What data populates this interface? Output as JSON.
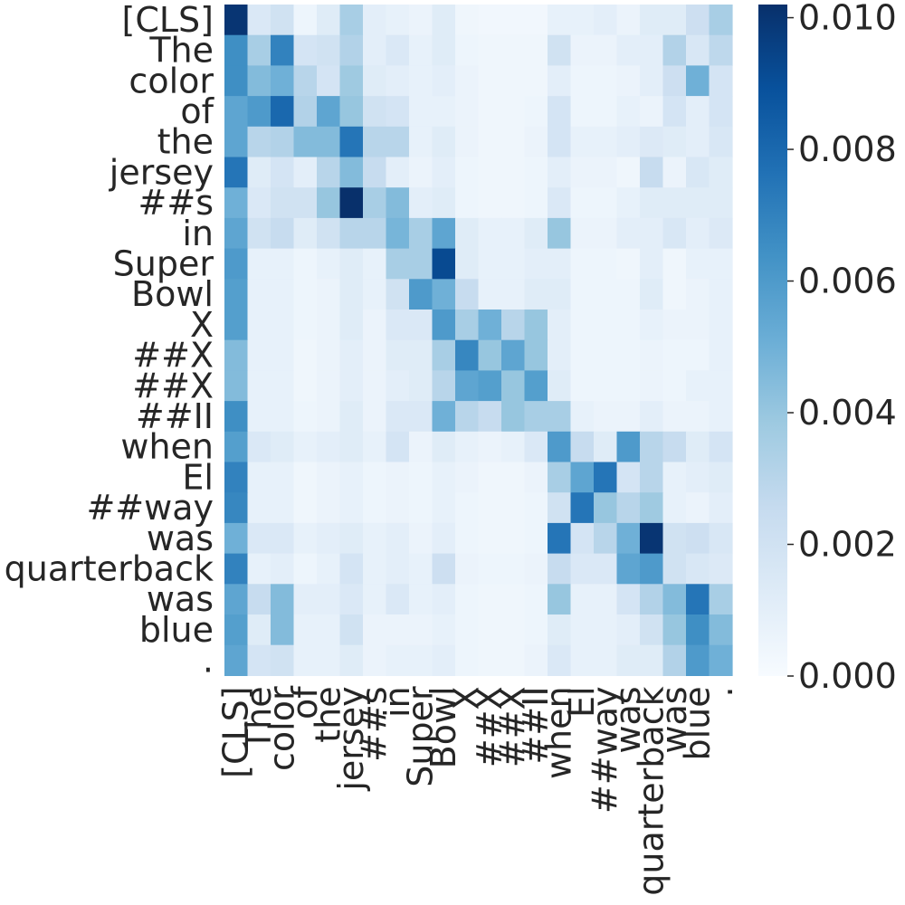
{
  "chart_data": {
    "type": "heatmap",
    "title": "",
    "xlabel": "",
    "ylabel": "",
    "rows": [
      "[CLS]",
      "The",
      "color",
      "of",
      "the",
      "jersey",
      "##s",
      "in",
      "Super",
      "Bowl",
      "X",
      "##X",
      "##X",
      "##II",
      "when",
      "El",
      "##way",
      "was",
      "quarterback",
      "was",
      "blue",
      "."
    ],
    "columns": [
      "[CLS]",
      "The",
      "color",
      "of",
      "the",
      "jersey",
      "##s",
      "in",
      "Super",
      "Bowl",
      "X",
      "##X",
      "##X",
      "##II",
      "when",
      "El",
      "##way",
      "was",
      "quarterback",
      "was",
      "blue",
      "."
    ],
    "values": [
      [
        0.01,
        0.0015,
        0.002,
        0.0005,
        0.0012,
        0.0035,
        0.001,
        0.0008,
        0.0006,
        0.0012,
        0.0004,
        0.0003,
        0.0003,
        0.0003,
        0.0008,
        0.0008,
        0.001,
        0.0006,
        0.0012,
        0.0012,
        0.0022,
        0.0035
      ],
      [
        0.0065,
        0.0035,
        0.007,
        0.0018,
        0.002,
        0.0032,
        0.001,
        0.0015,
        0.0008,
        0.0012,
        0.0005,
        0.0004,
        0.0004,
        0.0004,
        0.002,
        0.0006,
        0.0006,
        0.001,
        0.001,
        0.0032,
        0.0016,
        0.0028
      ],
      [
        0.0065,
        0.0045,
        0.005,
        0.003,
        0.0018,
        0.0038,
        0.0012,
        0.001,
        0.0008,
        0.001,
        0.0006,
        0.0004,
        0.0004,
        0.0004,
        0.001,
        0.0005,
        0.0005,
        0.0006,
        0.001,
        0.0022,
        0.005,
        0.0018
      ],
      [
        0.0055,
        0.006,
        0.008,
        0.0032,
        0.0055,
        0.004,
        0.002,
        0.0018,
        0.0008,
        0.0008,
        0.0006,
        0.0004,
        0.0004,
        0.0005,
        0.0018,
        0.0005,
        0.0005,
        0.0008,
        0.0006,
        0.0018,
        0.001,
        0.0018
      ],
      [
        0.0055,
        0.003,
        0.0032,
        0.0045,
        0.0045,
        0.0075,
        0.003,
        0.003,
        0.0008,
        0.0012,
        0.0006,
        0.0004,
        0.0004,
        0.0006,
        0.0018,
        0.0008,
        0.0008,
        0.001,
        0.0014,
        0.0012,
        0.001,
        0.0016
      ],
      [
        0.0075,
        0.0012,
        0.0018,
        0.001,
        0.003,
        0.0045,
        0.0025,
        0.001,
        0.0006,
        0.001,
        0.0005,
        0.0004,
        0.0004,
        0.0005,
        0.001,
        0.0006,
        0.0006,
        0.0004,
        0.0025,
        0.0006,
        0.0016,
        0.0012
      ],
      [
        0.005,
        0.0015,
        0.002,
        0.002,
        0.004,
        0.0102,
        0.0035,
        0.0045,
        0.001,
        0.0012,
        0.0005,
        0.0004,
        0.0004,
        0.0005,
        0.0015,
        0.0005,
        0.0005,
        0.0008,
        0.0012,
        0.0012,
        0.0012,
        0.0012
      ],
      [
        0.0055,
        0.002,
        0.0025,
        0.0012,
        0.002,
        0.003,
        0.003,
        0.0048,
        0.0035,
        0.0055,
        0.0012,
        0.0008,
        0.0008,
        0.0012,
        0.004,
        0.0006,
        0.0006,
        0.001,
        0.001,
        0.0016,
        0.001,
        0.0014
      ],
      [
        0.006,
        0.0008,
        0.0008,
        0.0005,
        0.0008,
        0.0012,
        0.0008,
        0.0035,
        0.0035,
        0.0092,
        0.0012,
        0.0008,
        0.0008,
        0.001,
        0.001,
        0.0005,
        0.0005,
        0.0004,
        0.001,
        0.0004,
        0.0008,
        0.0008
      ],
      [
        0.0058,
        0.0008,
        0.0008,
        0.0005,
        0.0006,
        0.0012,
        0.0008,
        0.002,
        0.006,
        0.005,
        0.0025,
        0.0008,
        0.0008,
        0.0012,
        0.0012,
        0.0005,
        0.0005,
        0.0005,
        0.0012,
        0.0004,
        0.0006,
        0.0008
      ],
      [
        0.0058,
        0.0008,
        0.0008,
        0.0005,
        0.0006,
        0.0012,
        0.0006,
        0.0015,
        0.0015,
        0.006,
        0.0035,
        0.005,
        0.003,
        0.004,
        0.001,
        0.0005,
        0.0005,
        0.0005,
        0.0008,
        0.0006,
        0.0006,
        0.0008
      ],
      [
        0.0045,
        0.0008,
        0.0008,
        0.0004,
        0.0006,
        0.001,
        0.0006,
        0.0012,
        0.0012,
        0.0035,
        0.0068,
        0.004,
        0.0055,
        0.004,
        0.001,
        0.0005,
        0.0005,
        0.0005,
        0.0006,
        0.0005,
        0.0005,
        0.0008
      ],
      [
        0.0045,
        0.0008,
        0.0008,
        0.0004,
        0.0006,
        0.001,
        0.0006,
        0.001,
        0.0012,
        0.003,
        0.0055,
        0.0058,
        0.004,
        0.0058,
        0.0012,
        0.0005,
        0.0005,
        0.0005,
        0.0006,
        0.0005,
        0.0008,
        0.0008
      ],
      [
        0.0065,
        0.0008,
        0.0008,
        0.0005,
        0.0006,
        0.0012,
        0.0006,
        0.0015,
        0.0015,
        0.005,
        0.003,
        0.0025,
        0.004,
        0.0035,
        0.0035,
        0.0008,
        0.0006,
        0.0006,
        0.001,
        0.0006,
        0.0006,
        0.0008
      ],
      [
        0.0058,
        0.0015,
        0.0012,
        0.0008,
        0.001,
        0.0012,
        0.0008,
        0.0018,
        0.0006,
        0.0012,
        0.0008,
        0.0006,
        0.0008,
        0.0015,
        0.006,
        0.0025,
        0.0012,
        0.006,
        0.003,
        0.0025,
        0.0012,
        0.0018
      ],
      [
        0.007,
        0.0008,
        0.0008,
        0.0004,
        0.0006,
        0.0008,
        0.0005,
        0.0006,
        0.0005,
        0.0008,
        0.0006,
        0.0004,
        0.0004,
        0.0006,
        0.0035,
        0.0055,
        0.0075,
        0.0018,
        0.003,
        0.0008,
        0.001,
        0.0012
      ],
      [
        0.0068,
        0.0008,
        0.0008,
        0.0004,
        0.0006,
        0.0008,
        0.0005,
        0.0006,
        0.0005,
        0.0008,
        0.0005,
        0.0004,
        0.0004,
        0.0005,
        0.002,
        0.0075,
        0.004,
        0.003,
        0.0038,
        0.0008,
        0.0006,
        0.001
      ],
      [
        0.005,
        0.0015,
        0.0015,
        0.0008,
        0.001,
        0.0012,
        0.0008,
        0.001,
        0.0006,
        0.001,
        0.0005,
        0.0004,
        0.0004,
        0.0005,
        0.0075,
        0.0018,
        0.003,
        0.005,
        0.01,
        0.002,
        0.0022,
        0.0016
      ],
      [
        0.007,
        0.0008,
        0.001,
        0.0005,
        0.0008,
        0.0018,
        0.0008,
        0.001,
        0.0008,
        0.0022,
        0.0006,
        0.0005,
        0.0005,
        0.0006,
        0.0025,
        0.0015,
        0.0015,
        0.0055,
        0.006,
        0.002,
        0.0016,
        0.0014
      ],
      [
        0.0055,
        0.0025,
        0.0045,
        0.001,
        0.001,
        0.0015,
        0.0008,
        0.0015,
        0.0008,
        0.001,
        0.0005,
        0.0004,
        0.0004,
        0.0005,
        0.004,
        0.0008,
        0.0008,
        0.0018,
        0.0032,
        0.0045,
        0.0075,
        0.0035
      ],
      [
        0.0058,
        0.0012,
        0.0045,
        0.0008,
        0.0008,
        0.002,
        0.0006,
        0.0006,
        0.0006,
        0.0008,
        0.0005,
        0.0004,
        0.0004,
        0.0005,
        0.0012,
        0.0008,
        0.0008,
        0.001,
        0.002,
        0.004,
        0.0065,
        0.0045
      ],
      [
        0.0055,
        0.0018,
        0.002,
        0.0008,
        0.0008,
        0.0012,
        0.0006,
        0.0008,
        0.0008,
        0.001,
        0.0005,
        0.0004,
        0.0004,
        0.0006,
        0.0015,
        0.0008,
        0.0008,
        0.0012,
        0.0012,
        0.0032,
        0.006,
        0.005
      ]
    ],
    "vmin": 0.0,
    "vmax": 0.0102,
    "colormap": "Blues",
    "colorbar_ticks": [
      0.0,
      0.002,
      0.004,
      0.006,
      0.008,
      0.01
    ],
    "colorbar_tick_labels": [
      "0.000",
      "0.002",
      "0.004",
      "0.006",
      "0.008",
      "0.010"
    ]
  }
}
